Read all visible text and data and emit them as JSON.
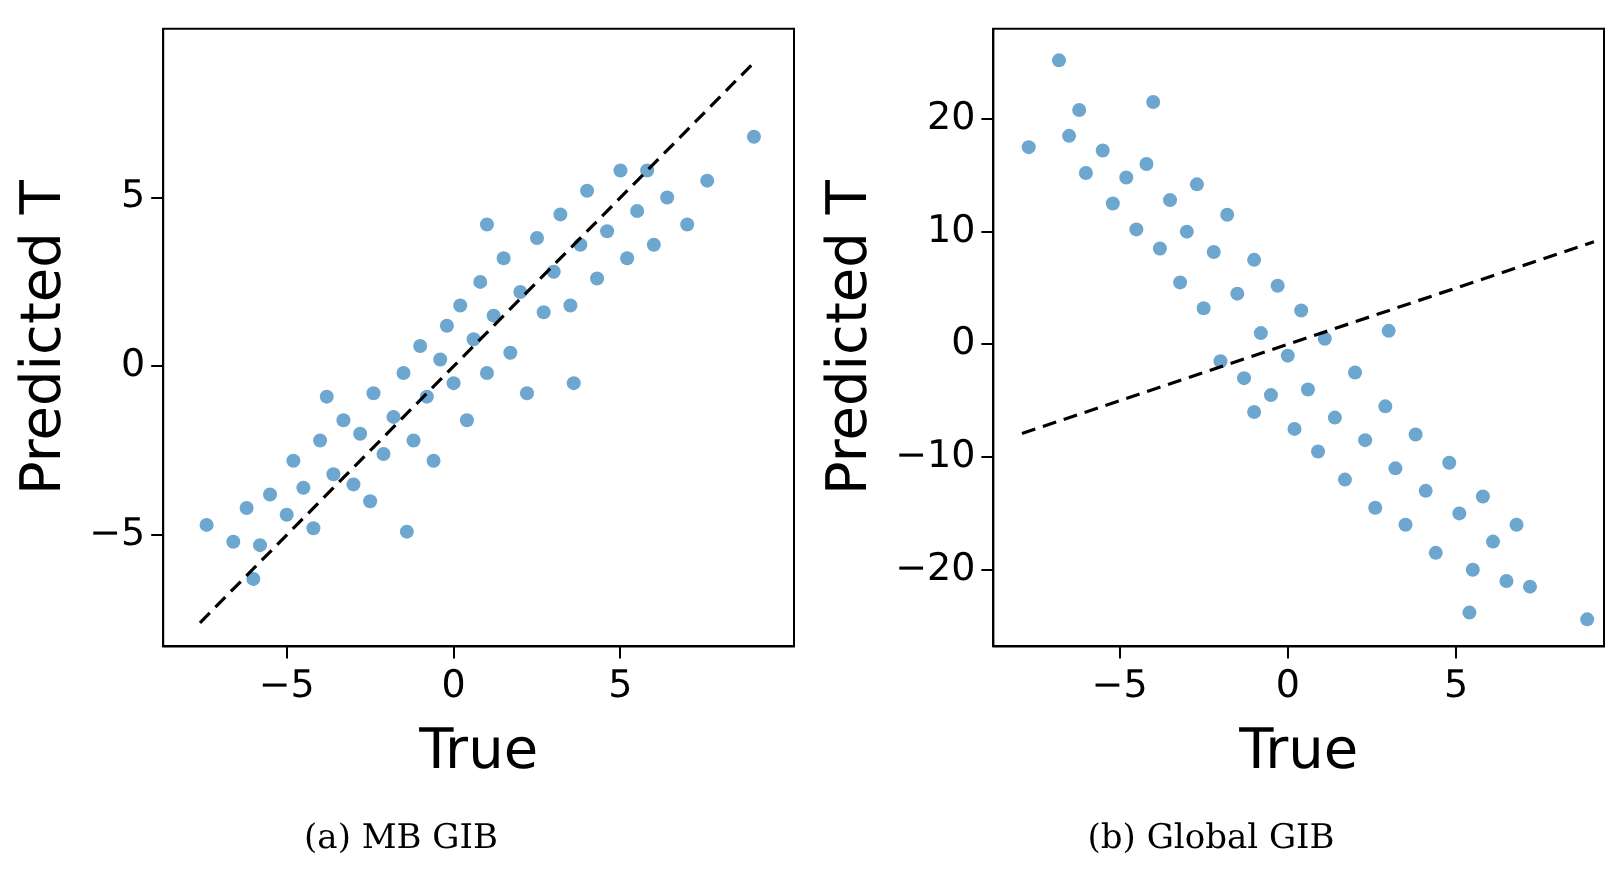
{
  "chart_data": [
    {
      "type": "scatter",
      "title": "(a) MB GIB",
      "xlabel": "True",
      "ylabel": "Predicted T",
      "xlim": [
        -8.7,
        10.2
      ],
      "ylim": [
        -8.3,
        10.0
      ],
      "xticks": [
        -5,
        0,
        5
      ],
      "yticks": [
        -5,
        0,
        5
      ],
      "grid": false,
      "legend": false,
      "marker": "circle",
      "series": [
        {
          "type": "scatter",
          "color": "#1f77b4",
          "x": [
            -7.4,
            -6.6,
            -6.2,
            -5.8,
            -5.5,
            -5.0,
            -4.8,
            -4.5,
            -4.2,
            -4.0,
            -3.6,
            -3.3,
            -3.0,
            -2.8,
            -2.5,
            -2.4,
            -2.1,
            -1.8,
            -1.5,
            -1.4,
            -1.2,
            -1.0,
            -0.8,
            -0.6,
            -0.4,
            -0.2,
            0.0,
            0.2,
            0.4,
            0.6,
            0.8,
            1.0,
            1.2,
            1.5,
            1.7,
            2.0,
            2.2,
            2.5,
            2.7,
            3.0,
            3.2,
            3.5,
            3.8,
            4.0,
            4.3,
            4.6,
            5.0,
            5.2,
            5.5,
            5.8,
            6.0,
            6.4,
            7.0,
            7.6,
            9.0,
            -6.0,
            -3.8,
            1.0,
            3.6
          ],
          "values": [
            -4.7,
            -5.2,
            -4.2,
            -5.3,
            -3.8,
            -4.4,
            -2.8,
            -3.6,
            -4.8,
            -2.2,
            -3.2,
            -1.6,
            -3.5,
            -2.0,
            -4.0,
            -0.8,
            -2.6,
            -1.5,
            -0.2,
            -4.9,
            -2.2,
            0.6,
            -0.9,
            -2.8,
            0.2,
            1.2,
            -0.5,
            1.8,
            -1.6,
            0.8,
            2.5,
            -0.2,
            1.5,
            3.2,
            0.4,
            2.2,
            -0.8,
            3.8,
            1.6,
            2.8,
            4.5,
            1.8,
            3.6,
            5.2,
            2.6,
            4.0,
            5.8,
            3.2,
            4.6,
            5.8,
            3.6,
            5.0,
            4.2,
            5.5,
            6.8,
            -6.3,
            -0.9,
            4.2,
            -0.5
          ]
        },
        {
          "type": "line",
          "color": "#000000",
          "line_style": "dashed",
          "marker": "none",
          "x": [
            -7.6,
            9.0
          ],
          "values": [
            -7.6,
            9.0
          ]
        }
      ]
    },
    {
      "type": "scatter",
      "title": "(b) Global GIB",
      "xlabel": "True",
      "ylabel": "Predicted T",
      "xlim": [
        -8.75,
        9.4
      ],
      "ylim": [
        -26.8,
        28.0
      ],
      "xticks": [
        -5,
        0,
        5
      ],
      "yticks": [
        -20,
        -10,
        0,
        10,
        20
      ],
      "grid": false,
      "legend": false,
      "marker": "circle",
      "series": [
        {
          "type": "scatter",
          "color": "#1f77b4",
          "x": [
            -7.7,
            -6.8,
            -6.5,
            -6.2,
            -6.0,
            -5.5,
            -5.2,
            -4.8,
            -4.5,
            -4.2,
            -3.8,
            -3.5,
            -3.2,
            -3.0,
            -2.7,
            -2.5,
            -2.2,
            -2.0,
            -1.8,
            -1.5,
            -1.3,
            -1.0,
            -0.8,
            -0.5,
            -0.3,
            0.0,
            0.2,
            0.4,
            0.6,
            0.9,
            1.1,
            1.4,
            1.7,
            2.0,
            2.3,
            2.6,
            2.9,
            3.2,
            3.5,
            3.8,
            4.1,
            4.4,
            4.8,
            5.1,
            5.5,
            5.8,
            6.1,
            6.5,
            6.8,
            7.2,
            5.4,
            8.9,
            -4.0,
            3.0,
            -1.0
          ],
          "values": [
            17.5,
            25.2,
            18.5,
            20.8,
            15.2,
            17.2,
            12.5,
            14.8,
            10.2,
            16.0,
            8.5,
            12.8,
            5.5,
            10.0,
            14.2,
            3.2,
            8.2,
            -1.5,
            11.5,
            4.5,
            -3.0,
            7.5,
            1.0,
            -4.5,
            5.2,
            -1.0,
            -7.5,
            3.0,
            -4.0,
            -9.5,
            0.5,
            -6.5,
            -12.0,
            -2.5,
            -8.5,
            -14.5,
            -5.5,
            -11.0,
            -16.0,
            -8.0,
            -13.0,
            -18.5,
            -10.5,
            -15.0,
            -20.0,
            -13.5,
            -17.5,
            -21.0,
            -16.0,
            -21.5,
            -23.8,
            -24.4,
            21.5,
            1.2,
            -6.0
          ]
        },
        {
          "type": "line",
          "color": "#000000",
          "line_style": "dashed",
          "marker": "none",
          "x": [
            -7.9,
            9.1
          ],
          "values": [
            -7.9,
            9.1
          ]
        }
      ]
    }
  ]
}
